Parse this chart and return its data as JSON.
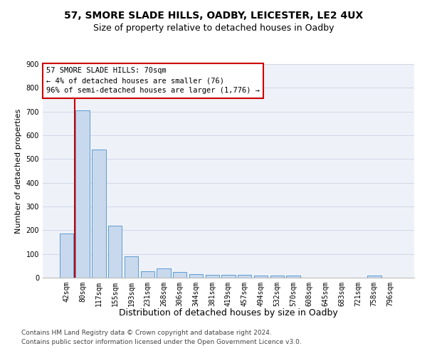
{
  "title": "57, SMORE SLADE HILLS, OADBY, LEICESTER, LE2 4UX",
  "subtitle": "Size of property relative to detached houses in Oadby",
  "xlabel": "Distribution of detached houses by size in Oadby",
  "ylabel": "Number of detached properties",
  "categories": [
    "42sqm",
    "80sqm",
    "117sqm",
    "155sqm",
    "193sqm",
    "231sqm",
    "268sqm",
    "306sqm",
    "344sqm",
    "381sqm",
    "419sqm",
    "457sqm",
    "494sqm",
    "532sqm",
    "570sqm",
    "608sqm",
    "645sqm",
    "683sqm",
    "721sqm",
    "758sqm",
    "796sqm"
  ],
  "values": [
    185,
    705,
    540,
    220,
    90,
    27,
    38,
    25,
    15,
    13,
    13,
    12,
    10,
    10,
    9,
    0,
    0,
    0,
    0,
    10,
    0
  ],
  "bar_color": "#c9d9ed",
  "bar_edge_color": "#5b9bd5",
  "grid_color": "#d0d8e8",
  "background_color": "#eef2f8",
  "annotation_text_line1": "57 SMORE SLADE HILLS: 70sqm",
  "annotation_text_line2": "← 4% of detached houses are smaller (76)",
  "annotation_text_line3": "96% of semi-detached houses are larger (1,776) →",
  "annotation_box_edgecolor": "#cc0000",
  "red_line_x": 0.5,
  "ylim": [
    0,
    900
  ],
  "yticks": [
    0,
    100,
    200,
    300,
    400,
    500,
    600,
    700,
    800,
    900
  ],
  "footer_line1": "Contains HM Land Registry data © Crown copyright and database right 2024.",
  "footer_line2": "Contains public sector information licensed under the Open Government Licence v3.0.",
  "title_fontsize": 10,
  "subtitle_fontsize": 9,
  "xlabel_fontsize": 9,
  "ylabel_fontsize": 8,
  "tick_fontsize": 7,
  "annotation_fontsize": 7.5,
  "footer_fontsize": 6.5
}
